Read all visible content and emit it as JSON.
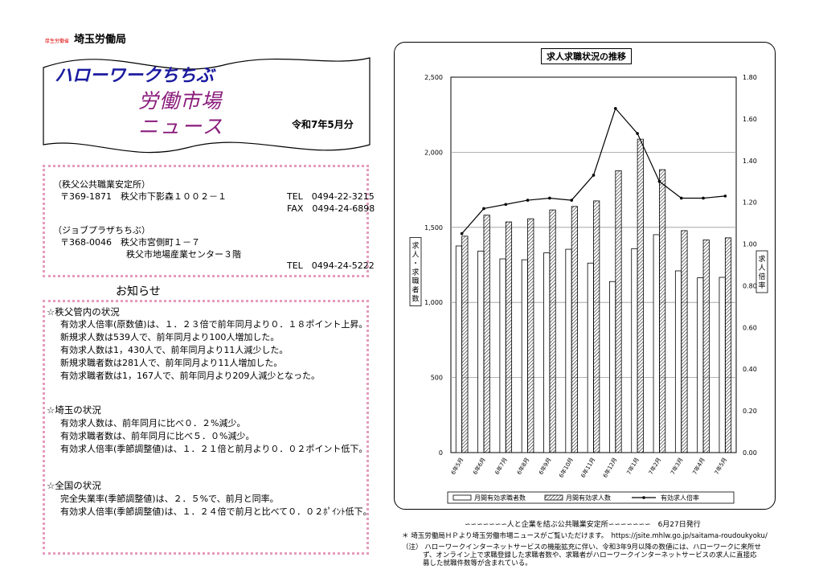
{
  "header": {
    "org_sub": "厚生労働省",
    "org": "埼玉労働局",
    "title1": "ハローワークちちぶ",
    "title2": "労働市場",
    "title3": "ニュース",
    "issue": "令和7年5月分"
  },
  "offices": {
    "line1": "（秩父公共職業安定所）",
    "line2": "〒369-1871　秩父市下影森１００２－１",
    "tel1": "TEL　0494-22-3215",
    "fax1": "FAX　0494-24-6898",
    "line3": "（ジョブプラザちちぶ）",
    "line4": "〒368-0046　秩父市宮側町１－７",
    "line5": "秩父市地場産業センター３階",
    "tel2": "TEL　0494-24-5222"
  },
  "notice": {
    "title": "お知らせ",
    "s1_head": "☆秩父管内の状況",
    "s1_l1": "有効求人倍率(原数値)は、１．２３倍で前年同月より０．１８ポイント上昇。",
    "s1_l2": "新規求人数は539人で、前年同月より100人増加した。",
    "s1_l3": "有効求人数は1，430人で、前年同月より11人減少した。",
    "s1_l4": "新規求職者数は281人で、前年同月より11人増加した。",
    "s1_l5": "有効求職者数は1，167人で、前年同月より209人減少となった。",
    "s2_head": "☆埼玉の状況",
    "s2_l1": "有効求人数は、前年同月に比べ０．２%減少。",
    "s2_l2": "有効求職者数は、前年同月に比べ５．０%減少。",
    "s2_l3": "有効求人倍率(季節調整値)は、１．２１倍と前月より０．０２ポイント低下。",
    "s3_head": "☆全国の状況",
    "s3_l1": "完全失業率(季節調整値)は、２．５%で、前月と同率。",
    "s3_l2": "有効求人倍率(季節調整値)は、１．２４倍で前月と比べて０．０２ﾎﾟｲﾝﾄ低下。"
  },
  "footer": {
    "line1": "∽∽∽∽∽∽∽人と企業を結ぶ公共職業安定所∽∽∽∽∽∽∽　6月27日発行",
    "line2": "＊ 埼玉労働局ＨＰより埼玉労働市場ニュースがご覧いただけます。　https://jsite.mhlw.go.jp/saitama-roudoukyoku/",
    "note1": "（注） ハローワークインターネットサービスの機能拡充に伴い、令和3年9月以降の数値には、ハローワークに来所せ",
    "note2": "ず、オンライン上で求職登録した求職者数や、求職者がハローワークインターネットサービスの求人に直接応",
    "note3": "募した就職件数等が含まれている。"
  },
  "colors": {
    "dots": "#e59bbd",
    "title_blue": "#1a1aa0",
    "title_purple": "#8a1c7c"
  },
  "chart_data": {
    "type": "bar",
    "title": "求人求職状況の推移",
    "categories": [
      "6年5月",
      "6年6月",
      "6年7月",
      "6年8月",
      "6年9月",
      "6年10月",
      "6年11月",
      "6年12月",
      "7年1月",
      "7年2月",
      "7年3月",
      "7年4月",
      "7年5月"
    ],
    "series": [
      {
        "name": "月間有効求職者数",
        "axis": "left",
        "values": [
          1376,
          1342,
          1290,
          1284,
          1330,
          1354,
          1262,
          1139,
          1358,
          1451,
          1210,
          1164,
          1167
        ]
      },
      {
        "name": "月間有効求人数",
        "axis": "left",
        "values": [
          1441,
          1581,
          1536,
          1557,
          1616,
          1639,
          1676,
          1877,
          2087,
          1884,
          1478,
          1416,
          1430
        ]
      },
      {
        "name": "有効求人倍率",
        "axis": "right",
        "type": "line",
        "values": [
          1.05,
          1.17,
          1.19,
          1.21,
          1.22,
          1.21,
          1.33,
          1.65,
          1.53,
          1.3,
          1.22,
          1.22,
          1.23
        ]
      }
    ],
    "ylabel": "求人・求職者数",
    "y2label": "求人倍率",
    "ylim": [
      0,
      2500
    ],
    "yticks": [
      "0",
      "500",
      "1,000",
      "1,500",
      "2,000",
      "2,500"
    ],
    "y2lim": [
      0,
      1.8
    ],
    "y2ticks": [
      "0.00",
      "0.20",
      "0.40",
      "0.60",
      "0.80",
      "1.00",
      "1.20",
      "1.40",
      "1.60",
      "1.80"
    ],
    "grid": true,
    "legend": "bottom"
  }
}
